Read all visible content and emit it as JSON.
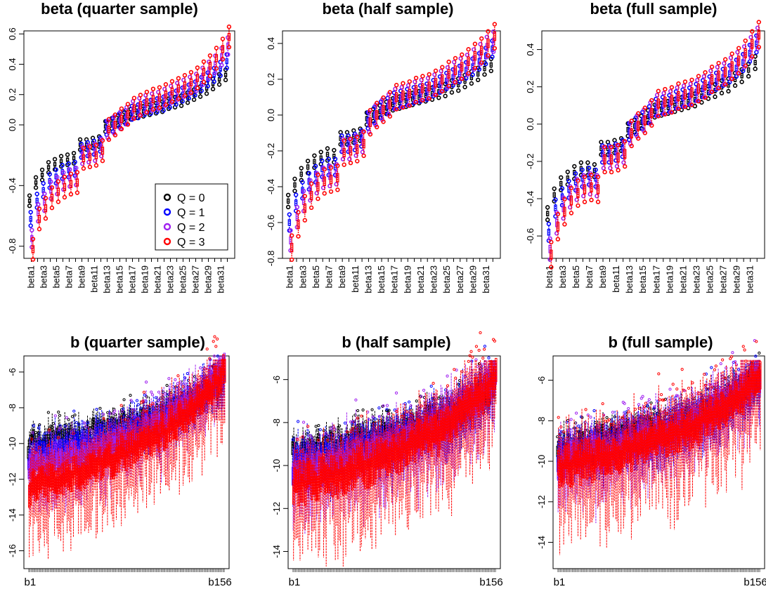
{
  "legend": {
    "entries": [
      {
        "label": "Q = 0",
        "color": "#000000"
      },
      {
        "label": "Q = 1",
        "color": "#0000ff"
      },
      {
        "label": "Q = 2",
        "color": "#a020f0"
      },
      {
        "label": "Q = 3",
        "color": "#ff0000"
      }
    ],
    "placement": "bottom-right of first panel"
  },
  "chart_data": [
    {
      "type": "boxplot",
      "title": "beta (quarter sample)",
      "parameter": "beta",
      "n_params": 32,
      "x_tick_labels": [
        "beta1",
        "beta3",
        "beta5",
        "beta7",
        "beta9",
        "beta11",
        "beta13",
        "beta15",
        "beta17",
        "beta19",
        "beta21",
        "beta23",
        "beta25",
        "beta27",
        "beta29",
        "beta31"
      ],
      "ylim": [
        -0.88,
        0.62
      ],
      "y_ticks": [
        -0.8,
        -0.4,
        0.0,
        0.2,
        0.4,
        0.6
      ],
      "y_tick_labels": [
        "-0.8",
        "-0.4",
        "0.0",
        "0.2",
        "0.4",
        "0.6"
      ],
      "series_medians": {
        "Q0": [
          -0.5,
          -0.38,
          -0.33,
          -0.28,
          -0.26,
          -0.24,
          -0.23,
          -0.22,
          -0.13,
          -0.13,
          -0.12,
          -0.11,
          -0.01,
          0.01,
          0.03,
          0.05,
          0.07,
          0.08,
          0.09,
          0.1,
          0.11,
          0.12,
          0.14,
          0.15,
          0.16,
          0.18,
          0.2,
          0.22,
          0.24,
          0.27,
          0.3,
          0.33
        ],
        "Q1": [
          -0.62,
          -0.5,
          -0.43,
          -0.37,
          -0.34,
          -0.31,
          -0.3,
          -0.29,
          -0.17,
          -0.16,
          -0.15,
          -0.13,
          -0.02,
          0.0,
          0.03,
          0.05,
          0.08,
          0.09,
          0.11,
          0.12,
          0.13,
          0.14,
          0.16,
          0.18,
          0.2,
          0.22,
          0.24,
          0.27,
          0.3,
          0.33,
          0.37,
          0.42
        ],
        "Q2": [
          -0.75,
          -0.58,
          -0.51,
          -0.43,
          -0.4,
          -0.37,
          -0.35,
          -0.34,
          -0.2,
          -0.19,
          -0.18,
          -0.15,
          -0.03,
          0.0,
          0.03,
          0.06,
          0.1,
          0.12,
          0.14,
          0.15,
          0.16,
          0.18,
          0.2,
          0.22,
          0.24,
          0.26,
          0.28,
          0.32,
          0.36,
          0.4,
          0.45,
          0.52
        ],
        "Q3": [
          -0.82,
          -0.62,
          -0.55,
          -0.48,
          -0.44,
          -0.41,
          -0.39,
          -0.38,
          -0.22,
          -0.21,
          -0.2,
          -0.17,
          -0.03,
          0.0,
          0.04,
          0.07,
          0.11,
          0.13,
          0.15,
          0.17,
          0.18,
          0.2,
          0.22,
          0.24,
          0.26,
          0.28,
          0.31,
          0.35,
          0.39,
          0.44,
          0.5,
          0.58
        ]
      }
    },
    {
      "type": "boxplot",
      "title": "beta (half sample)",
      "parameter": "beta",
      "n_params": 32,
      "x_tick_labels": [
        "beta1",
        "beta3",
        "beta5",
        "beta7",
        "beta9",
        "beta11",
        "beta13",
        "beta15",
        "beta17",
        "beta19",
        "beta21",
        "beta23",
        "beta25",
        "beta27",
        "beta29",
        "beta31"
      ],
      "ylim": [
        -0.8,
        0.47
      ],
      "y_ticks": [
        -0.8,
        -0.6,
        -0.4,
        -0.2,
        0.0,
        0.2,
        0.4
      ],
      "y_tick_labels": [
        "-0.8",
        "-0.6",
        "-0.4",
        "-0.2",
        "0.0",
        "0.2",
        "0.4"
      ],
      "series_medians": {
        "Q0": [
          -0.48,
          -0.39,
          -0.33,
          -0.29,
          -0.26,
          -0.24,
          -0.22,
          -0.23,
          -0.13,
          -0.13,
          -0.12,
          -0.11,
          -0.02,
          0.0,
          0.02,
          0.04,
          0.06,
          0.07,
          0.08,
          0.09,
          0.1,
          0.11,
          0.12,
          0.13,
          0.14,
          0.16,
          0.17,
          0.19,
          0.21,
          0.23,
          0.26,
          0.28
        ],
        "Q1": [
          -0.6,
          -0.49,
          -0.42,
          -0.37,
          -0.33,
          -0.3,
          -0.29,
          -0.29,
          -0.16,
          -0.16,
          -0.15,
          -0.13,
          -0.03,
          0.0,
          0.03,
          0.05,
          0.08,
          0.09,
          0.1,
          0.11,
          0.12,
          0.13,
          0.15,
          0.17,
          0.19,
          0.21,
          0.23,
          0.25,
          0.27,
          0.3,
          0.33,
          0.37
        ],
        "Q2": [
          -0.7,
          -0.57,
          -0.48,
          -0.42,
          -0.38,
          -0.35,
          -0.34,
          -0.33,
          -0.19,
          -0.19,
          -0.17,
          -0.15,
          -0.04,
          0.0,
          0.03,
          0.06,
          0.09,
          0.1,
          0.11,
          0.13,
          0.14,
          0.15,
          0.17,
          0.19,
          0.21,
          0.24,
          0.26,
          0.28,
          0.31,
          0.34,
          0.38,
          0.41
        ],
        "Q3": [
          -0.74,
          -0.61,
          -0.52,
          -0.45,
          -0.4,
          -0.37,
          -0.36,
          -0.35,
          -0.21,
          -0.2,
          -0.19,
          -0.16,
          -0.04,
          0.0,
          0.03,
          0.06,
          0.1,
          0.11,
          0.12,
          0.14,
          0.15,
          0.16,
          0.18,
          0.2,
          0.23,
          0.25,
          0.27,
          0.3,
          0.33,
          0.36,
          0.4,
          0.44
        ]
      }
    },
    {
      "type": "boxplot",
      "title": "beta (full sample)",
      "parameter": "beta",
      "n_params": 32,
      "x_tick_labels": [
        "beta1",
        "beta3",
        "beta5",
        "beta7",
        "beta9",
        "beta11",
        "beta13",
        "beta15",
        "beta17",
        "beta19",
        "beta21",
        "beta23",
        "beta25",
        "beta27",
        "beta29",
        "beta31"
      ],
      "ylim": [
        -0.72,
        0.5
      ],
      "y_ticks": [
        -0.6,
        -0.4,
        -0.2,
        0.0,
        0.2,
        0.4
      ],
      "y_tick_labels": [
        "-0.6",
        "-0.4",
        "-0.2",
        "0.0",
        "0.2",
        "0.4"
      ],
      "series_medians": {
        "Q0": [
          -0.48,
          -0.38,
          -0.32,
          -0.29,
          -0.26,
          -0.24,
          -0.24,
          -0.25,
          -0.13,
          -0.13,
          -0.12,
          -0.11,
          -0.03,
          -0.01,
          0.01,
          0.04,
          0.07,
          0.08,
          0.09,
          0.1,
          0.11,
          0.12,
          0.13,
          0.15,
          0.17,
          0.18,
          0.2,
          0.21,
          0.24,
          0.26,
          0.29,
          0.33
        ],
        "Q1": [
          -0.58,
          -0.45,
          -0.39,
          -0.35,
          -0.31,
          -0.29,
          -0.28,
          -0.29,
          -0.16,
          -0.16,
          -0.15,
          -0.13,
          -0.04,
          -0.01,
          0.02,
          0.05,
          0.09,
          0.1,
          0.11,
          0.13,
          0.14,
          0.15,
          0.17,
          0.19,
          0.21,
          0.23,
          0.25,
          0.27,
          0.3,
          0.33,
          0.38,
          0.43
        ],
        "Q2": [
          -0.67,
          -0.53,
          -0.45,
          -0.39,
          -0.35,
          -0.33,
          -0.32,
          -0.33,
          -0.18,
          -0.18,
          -0.17,
          -0.15,
          -0.05,
          -0.01,
          0.02,
          0.06,
          0.1,
          0.11,
          0.12,
          0.14,
          0.15,
          0.16,
          0.18,
          0.2,
          0.23,
          0.25,
          0.27,
          0.3,
          0.33,
          0.36,
          0.41,
          0.46
        ],
        "Q3": [
          -0.7,
          -0.55,
          -0.47,
          -0.41,
          -0.37,
          -0.35,
          -0.34,
          -0.35,
          -0.19,
          -0.19,
          -0.18,
          -0.16,
          -0.05,
          -0.01,
          0.02,
          0.06,
          0.11,
          0.12,
          0.13,
          0.15,
          0.16,
          0.17,
          0.19,
          0.21,
          0.24,
          0.26,
          0.28,
          0.31,
          0.34,
          0.38,
          0.43,
          0.48
        ]
      }
    },
    {
      "type": "boxplot",
      "title": "b (quarter sample)",
      "parameter": "b",
      "n_params": 156,
      "x_tick_labels": [
        "b1",
        "b156"
      ],
      "ylim": [
        -17.0,
        -5.1
      ],
      "y_ticks": [
        -16,
        -14,
        -12,
        -10,
        -8,
        -6
      ],
      "y_tick_labels": [
        "-16",
        "-14",
        "-12",
        "-10",
        "-8",
        "-6"
      ],
      "series_range": {
        "Q0": [
          -10.0,
          -6.5
        ],
        "Q1": [
          -10.8,
          -6.2
        ],
        "Q2": [
          -11.5,
          -5.9
        ],
        "Q3": [
          -12.5,
          -5.9
        ]
      }
    },
    {
      "type": "boxplot",
      "title": "b (half sample)",
      "parameter": "b",
      "n_params": 156,
      "x_tick_labels": [
        "b1",
        "b156"
      ],
      "ylim": [
        -14.8,
        -4.9
      ],
      "y_ticks": [
        -14,
        -12,
        -10,
        -8,
        -6
      ],
      "y_tick_labels": [
        "-14",
        "-12",
        "-10",
        "-8",
        "-6"
      ],
      "series_range": {
        "Q0": [
          -9.3,
          -6.4
        ],
        "Q1": [
          -10.0,
          -6.1
        ],
        "Q2": [
          -10.5,
          -5.9
        ],
        "Q3": [
          -11.0,
          -5.9
        ]
      }
    },
    {
      "type": "boxplot",
      "title": "b (full sample)",
      "parameter": "b",
      "n_params": 156,
      "x_tick_labels": [
        "b1",
        "b156"
      ],
      "ylim": [
        -15.3,
        -4.8
      ],
      "y_ticks": [
        -14,
        -12,
        -10,
        -8,
        -6
      ],
      "y_tick_labels": [
        "-14",
        "-12",
        "-10",
        "-8",
        "-6"
      ],
      "series_range": {
        "Q0": [
          -9.3,
          -5.9
        ],
        "Q1": [
          -9.8,
          -5.9
        ],
        "Q2": [
          -10.1,
          -5.8
        ],
        "Q3": [
          -10.3,
          -5.8
        ]
      }
    }
  ]
}
